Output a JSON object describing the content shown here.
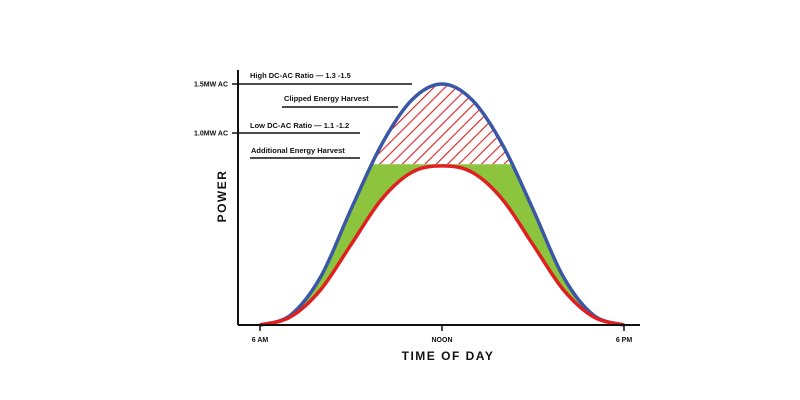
{
  "chart_data": {
    "type": "area",
    "title": "",
    "xlabel": "TIME OF DAY",
    "ylabel": "POWER",
    "x_ticks": [
      "6 AM",
      "NOON",
      "6 PM"
    ],
    "y_ticks": [
      "1.5MW AC",
      "1.0MW AC"
    ],
    "series": [
      {
        "name": "High DC-AC Ratio — 1.3 -1.5",
        "color": "#3a57a7",
        "x": [
          6,
          7,
          8,
          9,
          10,
          11,
          12,
          13,
          14,
          15,
          16,
          17,
          18
        ],
        "y": [
          0,
          0.06,
          0.3,
          0.72,
          1.12,
          1.4,
          1.5,
          1.4,
          1.12,
          0.72,
          0.3,
          0.06,
          0
        ]
      },
      {
        "name": "Low DC-AC Ratio — 1.1 -1.2",
        "color": "#e02020",
        "x": [
          6,
          7,
          8,
          9,
          10,
          11,
          12,
          13,
          14,
          15,
          16,
          17,
          18
        ],
        "y": [
          0,
          0.05,
          0.22,
          0.5,
          0.78,
          0.95,
          0.99,
          0.95,
          0.78,
          0.5,
          0.22,
          0.05,
          0
        ]
      }
    ],
    "clip_level": 1.0,
    "regions": [
      {
        "name": "Clipped Energy Harvest",
        "fill": "red-hatch",
        "color": "#e02020"
      },
      {
        "name": "Additional Energy Harvest",
        "fill": "solid",
        "color": "#8cc43e"
      }
    ],
    "annotations": [
      "High DC-AC Ratio — 1.3 -1.5",
      "Clipped Energy Harvest",
      "Low DC-AC Ratio — 1.1 -1.2",
      "Additional Energy Harvest"
    ],
    "xlim": [
      6,
      18
    ],
    "ylim": [
      0,
      1.5
    ],
    "grid": false,
    "legend": "none"
  }
}
